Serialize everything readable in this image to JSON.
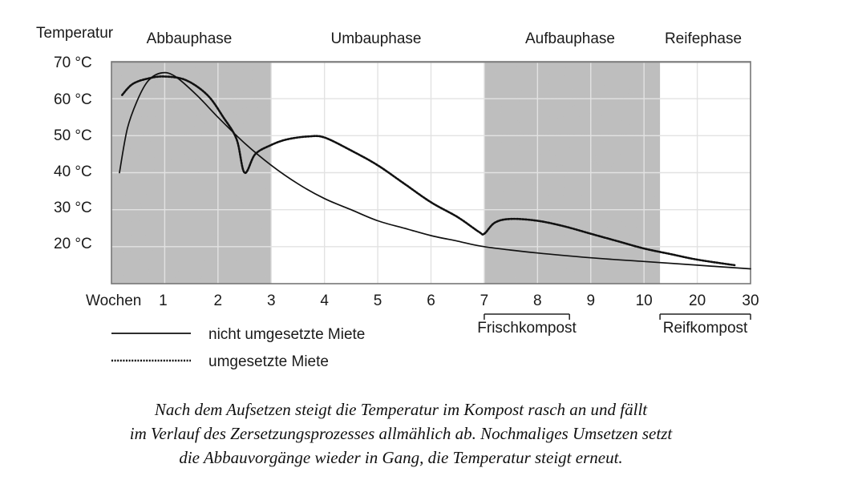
{
  "chart_data": {
    "type": "line",
    "ylabel": "Temperatur",
    "xlabel": "Wochen",
    "x_ticks": [
      "1",
      "2",
      "3",
      "4",
      "5",
      "6",
      "7",
      "8",
      "9",
      "10",
      "20",
      "30"
    ],
    "y_ticks": [
      "70 °C",
      "60 °C",
      "50 °C",
      "40 °C",
      "30 °C",
      "20 °C"
    ],
    "ylim": [
      10,
      70
    ],
    "phases": [
      {
        "label": "Abbauphase",
        "shaded": true,
        "start": 0,
        "end": 3
      },
      {
        "label": "Umbauphase",
        "shaded": false,
        "start": 3,
        "end": 7
      },
      {
        "label": "Aufbauphase",
        "shaded": true,
        "start": 7,
        "end": 10.3
      },
      {
        "label": "Reifephase",
        "shaded": false,
        "start": 10.3,
        "end": 12
      }
    ],
    "brackets": [
      {
        "label": "Frischkompost",
        "start": 7,
        "end": 8.6
      },
      {
        "label": "Reifkompost",
        "start": 10.3,
        "end": 12
      }
    ],
    "series": [
      {
        "name": "nicht umgesetzte Miete",
        "style": "solid",
        "points": [
          [
            0.15,
            40
          ],
          [
            0.3,
            52
          ],
          [
            0.5,
            60
          ],
          [
            0.7,
            65
          ],
          [
            0.95,
            67
          ],
          [
            1.2,
            66
          ],
          [
            1.6,
            61
          ],
          [
            2.0,
            55
          ],
          [
            2.5,
            48
          ],
          [
            3.0,
            42
          ],
          [
            3.5,
            37
          ],
          [
            4.0,
            33
          ],
          [
            4.5,
            30
          ],
          [
            5.0,
            27
          ],
          [
            5.5,
            25
          ],
          [
            6.0,
            23
          ],
          [
            6.5,
            21.5
          ],
          [
            7.0,
            20
          ],
          [
            8.0,
            18.3
          ],
          [
            9.0,
            17
          ],
          [
            10.0,
            16
          ],
          [
            11.0,
            15
          ],
          [
            12.0,
            14
          ]
        ]
      },
      {
        "name": "umgesetzte Miete",
        "style": "dotted",
        "points": [
          [
            0.2,
            61
          ],
          [
            0.4,
            64
          ],
          [
            0.7,
            65.5
          ],
          [
            1.0,
            66
          ],
          [
            1.4,
            65
          ],
          [
            1.8,
            61
          ],
          [
            2.1,
            55
          ],
          [
            2.35,
            49
          ],
          [
            2.5,
            40
          ],
          [
            2.7,
            45
          ],
          [
            3.0,
            47.5
          ],
          [
            3.3,
            49
          ],
          [
            3.7,
            49.8
          ],
          [
            4.0,
            49.5
          ],
          [
            4.5,
            46
          ],
          [
            5.0,
            42
          ],
          [
            5.5,
            37
          ],
          [
            6.0,
            32
          ],
          [
            6.5,
            28
          ],
          [
            6.9,
            24
          ],
          [
            7.0,
            23.5
          ],
          [
            7.2,
            26.5
          ],
          [
            7.5,
            27.5
          ],
          [
            8.0,
            27
          ],
          [
            8.5,
            25.5
          ],
          [
            9.0,
            23.5
          ],
          [
            9.5,
            21.5
          ],
          [
            10.0,
            19.5
          ],
          [
            10.5,
            18
          ],
          [
            11.0,
            16.5
          ],
          [
            11.7,
            15
          ]
        ]
      }
    ],
    "legend": [
      {
        "label": "nicht umgesetzte Miete",
        "style": "solid"
      },
      {
        "label": "umgesetzte Miete",
        "style": "dotted"
      }
    ],
    "caption_lines": [
      "Nach dem Aufsetzen steigt die Temperatur im Kompost rasch an und fällt",
      "im Verlauf des Zersetzungsprozesses allmählich ab. Nochmaliges Umsetzen setzt",
      "die Abbauvorgänge wieder in Gang, die Temperatur steigt erneut."
    ]
  }
}
